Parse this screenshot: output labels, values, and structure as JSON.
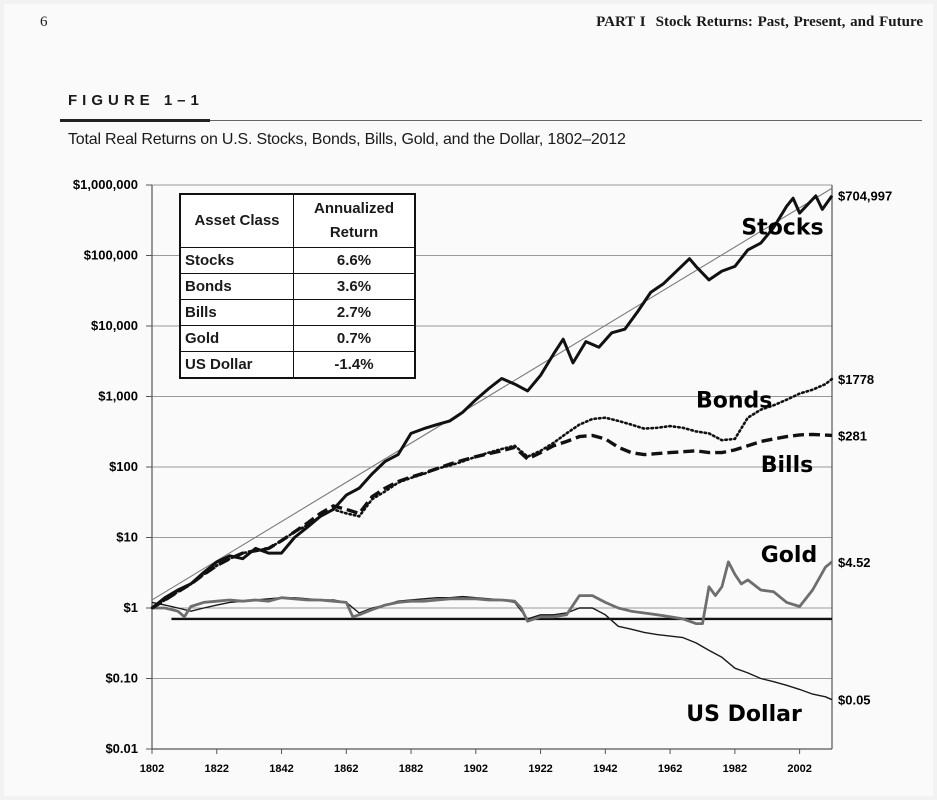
{
  "page": {
    "number": "6",
    "part": "PART I",
    "running_title": "Stock Returns: Past, Present, and Future"
  },
  "figure": {
    "label": "FIGURE 1–1",
    "caption": "Total Real Returns on U.S. Stocks, Bonds, Bills, Gold, and the Dollar, 1802–2012"
  },
  "table": {
    "headers": [
      "Asset Class",
      "Annualized Return"
    ],
    "rows": [
      {
        "asset": "Stocks",
        "return": "6.6%"
      },
      {
        "asset": "Bonds",
        "return": "3.6%"
      },
      {
        "asset": "Bills",
        "return": "2.7%"
      },
      {
        "asset": "Gold",
        "return": "0.7%"
      },
      {
        "asset": "US Dollar",
        "return": "-1.4%"
      }
    ]
  },
  "chart_data": {
    "type": "line",
    "title": "Total Real Returns on U.S. Stocks, Bonds, Bills, Gold, and the Dollar, 1802–2012",
    "xlabel": "",
    "ylabel": "",
    "xlim": [
      1802,
      2012
    ],
    "ylim": [
      0.01,
      1000000
    ],
    "yscale": "log",
    "grid": true,
    "x_ticks": [
      "1802",
      "1822",
      "1842",
      "1862",
      "1882",
      "1902",
      "1922",
      "1942",
      "1962",
      "1982",
      "2002"
    ],
    "y_ticks": [
      {
        "value": 1000000,
        "label": "$1,000,000"
      },
      {
        "value": 100000,
        "label": "$100,000"
      },
      {
        "value": 10000,
        "label": "$10,000"
      },
      {
        "value": 1000,
        "label": "$1,000"
      },
      {
        "value": 100,
        "label": "$100"
      },
      {
        "value": 10,
        "label": "$10"
      },
      {
        "value": 1,
        "label": "$1"
      },
      {
        "value": 0.1,
        "label": "$0.10"
      },
      {
        "value": 0.01,
        "label": "$0.01"
      }
    ],
    "reference_lines": [
      {
        "name": "Stocks trend",
        "style": "thin",
        "points": [
          [
            1802,
            1.3
          ],
          [
            2012,
            900000
          ]
        ]
      },
      {
        "name": "Baseline",
        "style": "thick",
        "points": [
          [
            1808,
            0.7
          ],
          [
            2012,
            0.7
          ]
        ]
      }
    ],
    "series": [
      {
        "name": "Stocks",
        "label": "Stocks",
        "end_label": "$704,997",
        "style": "solid-thick",
        "points": [
          [
            1802,
            1
          ],
          [
            1806,
            1.4
          ],
          [
            1810,
            1.8
          ],
          [
            1814,
            2.2
          ],
          [
            1818,
            3.2
          ],
          [
            1822,
            4.5
          ],
          [
            1826,
            5.5
          ],
          [
            1830,
            5
          ],
          [
            1834,
            7
          ],
          [
            1838,
            6
          ],
          [
            1842,
            6
          ],
          [
            1846,
            10
          ],
          [
            1850,
            14
          ],
          [
            1854,
            20
          ],
          [
            1858,
            25
          ],
          [
            1862,
            40
          ],
          [
            1866,
            50
          ],
          [
            1870,
            80
          ],
          [
            1874,
            120
          ],
          [
            1878,
            150
          ],
          [
            1882,
            300
          ],
          [
            1886,
            350
          ],
          [
            1890,
            400
          ],
          [
            1894,
            450
          ],
          [
            1898,
            600
          ],
          [
            1902,
            900
          ],
          [
            1906,
            1300
          ],
          [
            1910,
            1800
          ],
          [
            1914,
            1500
          ],
          [
            1918,
            1200
          ],
          [
            1922,
            2000
          ],
          [
            1926,
            4000
          ],
          [
            1929,
            6500
          ],
          [
            1932,
            3000
          ],
          [
            1936,
            6000
          ],
          [
            1940,
            5000
          ],
          [
            1944,
            8000
          ],
          [
            1948,
            9000
          ],
          [
            1952,
            16000
          ],
          [
            1956,
            30000
          ],
          [
            1960,
            40000
          ],
          [
            1964,
            60000
          ],
          [
            1968,
            90000
          ],
          [
            1970,
            70000
          ],
          [
            1974,
            45000
          ],
          [
            1978,
            60000
          ],
          [
            1982,
            70000
          ],
          [
            1986,
            120000
          ],
          [
            1990,
            150000
          ],
          [
            1994,
            250000
          ],
          [
            1998,
            500000
          ],
          [
            2000,
            650000
          ],
          [
            2002,
            400000
          ],
          [
            2004,
            500000
          ],
          [
            2007,
            700000
          ],
          [
            2009,
            450000
          ],
          [
            2012,
            704997
          ]
        ]
      },
      {
        "name": "Bonds",
        "label": "Bonds",
        "end_label": "$1778",
        "style": "dotted",
        "points": [
          [
            1802,
            1
          ],
          [
            1806,
            1.3
          ],
          [
            1810,
            1.7
          ],
          [
            1814,
            2.2
          ],
          [
            1818,
            3
          ],
          [
            1822,
            4
          ],
          [
            1826,
            5
          ],
          [
            1830,
            6
          ],
          [
            1834,
            6.5
          ],
          [
            1838,
            7
          ],
          [
            1842,
            9
          ],
          [
            1846,
            12
          ],
          [
            1850,
            15
          ],
          [
            1854,
            20
          ],
          [
            1858,
            25
          ],
          [
            1862,
            22
          ],
          [
            1866,
            20
          ],
          [
            1870,
            35
          ],
          [
            1874,
            45
          ],
          [
            1878,
            60
          ],
          [
            1882,
            70
          ],
          [
            1886,
            80
          ],
          [
            1890,
            95
          ],
          [
            1894,
            105
          ],
          [
            1898,
            120
          ],
          [
            1902,
            140
          ],
          [
            1906,
            160
          ],
          [
            1910,
            180
          ],
          [
            1914,
            200
          ],
          [
            1918,
            140
          ],
          [
            1922,
            170
          ],
          [
            1926,
            220
          ],
          [
            1930,
            300
          ],
          [
            1934,
            400
          ],
          [
            1938,
            480
          ],
          [
            1942,
            500
          ],
          [
            1946,
            450
          ],
          [
            1950,
            400
          ],
          [
            1954,
            350
          ],
          [
            1958,
            360
          ],
          [
            1962,
            380
          ],
          [
            1966,
            360
          ],
          [
            1970,
            320
          ],
          [
            1974,
            300
          ],
          [
            1978,
            240
          ],
          [
            1982,
            250
          ],
          [
            1986,
            500
          ],
          [
            1990,
            650
          ],
          [
            1994,
            750
          ],
          [
            1998,
            900
          ],
          [
            2002,
            1100
          ],
          [
            2006,
            1250
          ],
          [
            2010,
            1500
          ],
          [
            2012,
            1778
          ]
        ]
      },
      {
        "name": "Bills",
        "label": "Bills",
        "end_label": "$281",
        "style": "dashed",
        "points": [
          [
            1802,
            1
          ],
          [
            1806,
            1.3
          ],
          [
            1810,
            1.7
          ],
          [
            1814,
            2.2
          ],
          [
            1818,
            3
          ],
          [
            1822,
            4
          ],
          [
            1826,
            5
          ],
          [
            1830,
            6
          ],
          [
            1834,
            6.5
          ],
          [
            1838,
            7
          ],
          [
            1842,
            9
          ],
          [
            1846,
            12
          ],
          [
            1850,
            16
          ],
          [
            1854,
            22
          ],
          [
            1858,
            28
          ],
          [
            1862,
            25
          ],
          [
            1866,
            22
          ],
          [
            1870,
            38
          ],
          [
            1874,
            50
          ],
          [
            1878,
            62
          ],
          [
            1882,
            72
          ],
          [
            1886,
            82
          ],
          [
            1890,
            95
          ],
          [
            1894,
            110
          ],
          [
            1898,
            125
          ],
          [
            1902,
            140
          ],
          [
            1906,
            155
          ],
          [
            1910,
            170
          ],
          [
            1914,
            190
          ],
          [
            1918,
            130
          ],
          [
            1922,
            160
          ],
          [
            1926,
            200
          ],
          [
            1930,
            230
          ],
          [
            1934,
            270
          ],
          [
            1938,
            280
          ],
          [
            1942,
            250
          ],
          [
            1946,
            190
          ],
          [
            1950,
            160
          ],
          [
            1954,
            150
          ],
          [
            1958,
            155
          ],
          [
            1962,
            160
          ],
          [
            1966,
            165
          ],
          [
            1970,
            170
          ],
          [
            1974,
            160
          ],
          [
            1978,
            160
          ],
          [
            1982,
            175
          ],
          [
            1986,
            200
          ],
          [
            1990,
            230
          ],
          [
            1994,
            250
          ],
          [
            1998,
            270
          ],
          [
            2002,
            285
          ],
          [
            2006,
            290
          ],
          [
            2010,
            283
          ],
          [
            2012,
            281
          ]
        ]
      },
      {
        "name": "Gold",
        "label": "Gold",
        "end_label": "$4.52",
        "style": "solid-gray",
        "points": [
          [
            1802,
            1
          ],
          [
            1806,
            1
          ],
          [
            1810,
            0.9
          ],
          [
            1812,
            0.75
          ],
          [
            1814,
            1.05
          ],
          [
            1818,
            1.2
          ],
          [
            1822,
            1.25
          ],
          [
            1826,
            1.3
          ],
          [
            1830,
            1.25
          ],
          [
            1834,
            1.3
          ],
          [
            1838,
            1.25
          ],
          [
            1842,
            1.4
          ],
          [
            1846,
            1.35
          ],
          [
            1850,
            1.3
          ],
          [
            1854,
            1.3
          ],
          [
            1858,
            1.25
          ],
          [
            1862,
            1.2
          ],
          [
            1864,
            0.75
          ],
          [
            1866,
            0.8
          ],
          [
            1870,
            0.95
          ],
          [
            1874,
            1.1
          ],
          [
            1878,
            1.2
          ],
          [
            1882,
            1.25
          ],
          [
            1886,
            1.25
          ],
          [
            1890,
            1.3
          ],
          [
            1894,
            1.35
          ],
          [
            1898,
            1.35
          ],
          [
            1902,
            1.35
          ],
          [
            1906,
            1.3
          ],
          [
            1910,
            1.3
          ],
          [
            1914,
            1.25
          ],
          [
            1916,
            1
          ],
          [
            1918,
            0.65
          ],
          [
            1922,
            0.75
          ],
          [
            1926,
            0.75
          ],
          [
            1930,
            0.8
          ],
          [
            1934,
            1.5
          ],
          [
            1938,
            1.5
          ],
          [
            1942,
            1.2
          ],
          [
            1946,
            1
          ],
          [
            1950,
            0.9
          ],
          [
            1954,
            0.85
          ],
          [
            1958,
            0.8
          ],
          [
            1962,
            0.75
          ],
          [
            1966,
            0.7
          ],
          [
            1970,
            0.6
          ],
          [
            1972,
            0.6
          ],
          [
            1974,
            2
          ],
          [
            1976,
            1.5
          ],
          [
            1978,
            2
          ],
          [
            1980,
            4.5
          ],
          [
            1982,
            3
          ],
          [
            1984,
            2.2
          ],
          [
            1986,
            2.5
          ],
          [
            1990,
            1.8
          ],
          [
            1994,
            1.7
          ],
          [
            1998,
            1.2
          ],
          [
            2002,
            1.05
          ],
          [
            2006,
            1.8
          ],
          [
            2010,
            3.8
          ],
          [
            2012,
            4.52
          ]
        ]
      },
      {
        "name": "US Dollar",
        "label": "US Dollar",
        "end_label": "$0.05",
        "style": "solid-thin",
        "points": [
          [
            1802,
            1.2
          ],
          [
            1806,
            1.1
          ],
          [
            1810,
            1
          ],
          [
            1814,
            0.9
          ],
          [
            1818,
            1
          ],
          [
            1822,
            1.1
          ],
          [
            1826,
            1.2
          ],
          [
            1830,
            1.25
          ],
          [
            1834,
            1.3
          ],
          [
            1838,
            1.35
          ],
          [
            1842,
            1.4
          ],
          [
            1846,
            1.4
          ],
          [
            1850,
            1.35
          ],
          [
            1854,
            1.3
          ],
          [
            1858,
            1.3
          ],
          [
            1862,
            1.2
          ],
          [
            1866,
            0.85
          ],
          [
            1870,
            1
          ],
          [
            1874,
            1.1
          ],
          [
            1878,
            1.25
          ],
          [
            1882,
            1.3
          ],
          [
            1886,
            1.35
          ],
          [
            1890,
            1.4
          ],
          [
            1894,
            1.4
          ],
          [
            1898,
            1.45
          ],
          [
            1902,
            1.4
          ],
          [
            1906,
            1.35
          ],
          [
            1910,
            1.3
          ],
          [
            1914,
            1.2
          ],
          [
            1918,
            0.7
          ],
          [
            1922,
            0.8
          ],
          [
            1926,
            0.8
          ],
          [
            1930,
            0.85
          ],
          [
            1934,
            1
          ],
          [
            1938,
            1
          ],
          [
            1942,
            0.8
          ],
          [
            1946,
            0.55
          ],
          [
            1950,
            0.5
          ],
          [
            1954,
            0.45
          ],
          [
            1958,
            0.42
          ],
          [
            1962,
            0.4
          ],
          [
            1966,
            0.38
          ],
          [
            1970,
            0.32
          ],
          [
            1974,
            0.25
          ],
          [
            1978,
            0.2
          ],
          [
            1982,
            0.14
          ],
          [
            1986,
            0.12
          ],
          [
            1990,
            0.1
          ],
          [
            1994,
            0.09
          ],
          [
            1998,
            0.08
          ],
          [
            2002,
            0.07
          ],
          [
            2006,
            0.06
          ],
          [
            2010,
            0.055
          ],
          [
            2012,
            0.05
          ]
        ]
      }
    ]
  }
}
